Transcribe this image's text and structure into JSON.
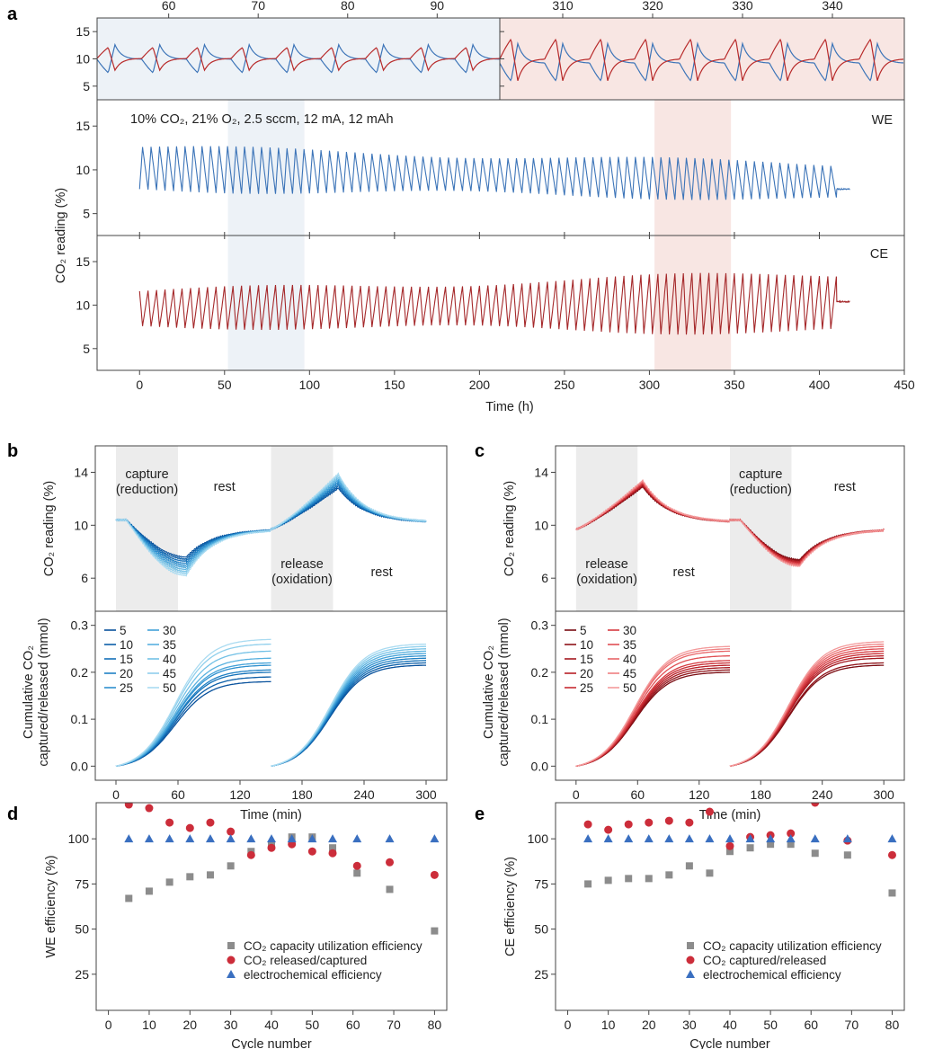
{
  "figure": {
    "panel_letters": [
      "a",
      "b",
      "c",
      "d",
      "e"
    ]
  },
  "chart_data": [
    {
      "id": "a-zoom-left",
      "type": "line",
      "top_axis_ticks": [
        "60",
        "70",
        "80",
        "90"
      ],
      "top_axis_values": [
        60,
        70,
        80,
        90
      ],
      "x_range_h": [
        52,
        97
      ],
      "yticks": [
        "15",
        "10",
        "5"
      ],
      "ytick_values": [
        15,
        10,
        5
      ],
      "ylim": [
        2.5,
        17.5
      ],
      "background": "#edf2f7",
      "series": [
        {
          "name": "WE",
          "color": "#3c74b8",
          "mean": 9.9,
          "amplitude": 2.7
        },
        {
          "name": "CE",
          "color": "#b82a2a",
          "mean": 10.1,
          "amplitude": 2.2
        }
      ]
    },
    {
      "id": "a-zoom-right",
      "type": "line",
      "top_axis_ticks": [
        "310",
        "320",
        "330",
        "340"
      ],
      "top_axis_values": [
        310,
        320,
        330,
        340
      ],
      "x_range_h": [
        303,
        348
      ],
      "ylim": [
        2.5,
        17.5
      ],
      "background": "#f8e6e3",
      "series": [
        {
          "name": "WE",
          "color": "#3c74b8",
          "mean": 9.2,
          "amplitude": 3.6
        },
        {
          "name": "CE",
          "color": "#b82a2a",
          "mean": 10.0,
          "amplitude": 4.0
        }
      ]
    },
    {
      "id": "a-we",
      "type": "line",
      "annotation": "10% CO₂, 21% O₂, 2.5 sccm, 12 mA, 12 mAh",
      "label": "WE",
      "ylabel": "CO₂ reading (%)",
      "yticks": [
        "15",
        "10",
        "5"
      ],
      "ytick_values": [
        15,
        10,
        5
      ],
      "ylim": [
        2.5,
        18
      ],
      "color": "#3c74b8",
      "cycle_period_h": 5,
      "data_end_h": 418,
      "highlight_regions_h": [
        [
          52,
          97
        ],
        [
          303,
          348
        ]
      ],
      "oscillation": {
        "mean_start": 10.2,
        "mean_end": 8.6,
        "amplitude_start": 2.4,
        "amplitude_end": 2.0,
        "final_value": 7.8
      }
    },
    {
      "id": "a-ce",
      "type": "line",
      "label": "CE",
      "yticks": [
        "15",
        "10",
        "5"
      ],
      "ytick_values": [
        15,
        10,
        5
      ],
      "ylim": [
        2.5,
        18
      ],
      "color": "#a5282a",
      "cycle_period_h": 5,
      "data_end_h": 418,
      "oscillation": {
        "mean_start": 9.6,
        "mean_end": 10.3,
        "amplitude_start": 2.0,
        "amplitude_end": 3.4,
        "final_value": 10.4
      },
      "xticks": [
        "0",
        "50",
        "100",
        "150",
        "200",
        "250",
        "300",
        "350",
        "400",
        "450"
      ],
      "xtick_values": [
        0,
        50,
        100,
        150,
        200,
        250,
        300,
        350,
        400,
        450
      ],
      "xlim": [
        -25,
        450
      ],
      "xlabel": "Time (h)"
    },
    {
      "id": "b-top",
      "type": "line",
      "ylabel": "CO₂ reading (%)",
      "yticks": [
        "14",
        "10",
        "6"
      ],
      "ytick_values": [
        14,
        10,
        6
      ],
      "ylim": [
        3.5,
        16
      ],
      "xlim": [
        -20,
        320
      ],
      "regions": [
        {
          "range_min": [
            0,
            60
          ],
          "label1": "capture",
          "label2": "(reduction)"
        },
        {
          "range_min": [
            150,
            210
          ],
          "label1": "release",
          "label2": "(oxidation)"
        }
      ],
      "rest_labels": [
        "rest",
        "rest"
      ],
      "profile": "capture-first",
      "min_range": [
        6.2,
        7.6
      ],
      "max_range": [
        12.8,
        13.9
      ]
    },
    {
      "id": "b-bottom",
      "type": "line",
      "ylabel1": "Cumulative CO₂",
      "ylabel2": "captured/released (mmol)",
      "yticks": [
        "0.3",
        "0.2",
        "0.1",
        "0.0"
      ],
      "ytick_values": [
        0.3,
        0.2,
        0.1,
        0.0
      ],
      "ylim": [
        -0.03,
        0.33
      ],
      "xticks": [
        "0",
        "60",
        "120",
        "180",
        "240",
        "300"
      ],
      "xtick_values": [
        0,
        60,
        120,
        180,
        240,
        300
      ],
      "xlim": [
        -20,
        320
      ],
      "xlabel": "Time (min)",
      "legend": [
        "5",
        "10",
        "15",
        "20",
        "25",
        "30",
        "35",
        "40",
        "45",
        "50"
      ],
      "first_segment_final": [
        0.18,
        0.19,
        0.2,
        0.205,
        0.215,
        0.22,
        0.23,
        0.245,
        0.26,
        0.27
      ],
      "second_segment_final": [
        0.215,
        0.22,
        0.225,
        0.23,
        0.235,
        0.24,
        0.245,
        0.25,
        0.255,
        0.26
      ],
      "colors": [
        "#08519c",
        "#0b5ea8",
        "#1370b8",
        "#1f80c4",
        "#2e90cf",
        "#42a1d8",
        "#58b1df",
        "#73c1e6",
        "#8fcfec",
        "#aadbf1"
      ]
    },
    {
      "id": "c-top",
      "type": "line",
      "ylabel": "CO₂ reading (%)",
      "yticks": [
        "14",
        "10",
        "6"
      ],
      "ytick_values": [
        14,
        10,
        6
      ],
      "ylim": [
        3.5,
        16
      ],
      "xlim": [
        -20,
        320
      ],
      "regions": [
        {
          "range_min": [
            0,
            60
          ],
          "label1": "release",
          "label2": "(oxidation)"
        },
        {
          "range_min": [
            150,
            210
          ],
          "label1": "capture",
          "label2": "(reduction)"
        }
      ],
      "rest_labels": [
        "rest",
        "rest"
      ],
      "profile": "release-first",
      "min_range": [
        6.9,
        7.4
      ],
      "max_range": [
        12.9,
        13.4
      ]
    },
    {
      "id": "c-bottom",
      "type": "line",
      "ylabel1": "Cumulative CO₂",
      "ylabel2": "captured/released (mmol)",
      "yticks": [
        "0.3",
        "0.2",
        "0.1",
        "0.0"
      ],
      "ytick_values": [
        0.3,
        0.2,
        0.1,
        0.0
      ],
      "ylim": [
        -0.03,
        0.33
      ],
      "xticks": [
        "0",
        "60",
        "120",
        "180",
        "240",
        "300"
      ],
      "xtick_values": [
        0,
        60,
        120,
        180,
        240,
        300
      ],
      "xlim": [
        -20,
        320
      ],
      "xlabel": "Time (min)",
      "legend": [
        "5",
        "10",
        "15",
        "20",
        "25",
        "30",
        "35",
        "40",
        "45",
        "50"
      ],
      "first_segment_final": [
        0.2,
        0.205,
        0.21,
        0.215,
        0.22,
        0.225,
        0.235,
        0.245,
        0.25,
        0.255
      ],
      "second_segment_final": [
        0.215,
        0.22,
        0.23,
        0.235,
        0.24,
        0.245,
        0.25,
        0.255,
        0.26,
        0.265
      ],
      "colors": [
        "#7a0c12",
        "#8e1218",
        "#a3181f",
        "#b71f27",
        "#c72a31",
        "#d53b41",
        "#e04e53",
        "#e86568",
        "#ee7e80",
        "#f39a9b"
      ]
    },
    {
      "id": "d",
      "type": "scatter",
      "ylabel": "WE efficiency (%)",
      "xlabel": "Cycle number",
      "xticks": [
        "0",
        "10",
        "20",
        "30",
        "40",
        "50",
        "60",
        "70",
        "80"
      ],
      "xtick_values": [
        0,
        10,
        20,
        30,
        40,
        50,
        60,
        70,
        80
      ],
      "xlim": [
        -3,
        83
      ],
      "yticks": [
        "100",
        "75",
        "50",
        "25"
      ],
      "ytick_values": [
        100,
        75,
        50,
        25
      ],
      "ylim": [
        5,
        120
      ],
      "series": [
        {
          "name": "CO₂ capacity utilization efficiency",
          "marker": "square",
          "color": "#8c8c8c",
          "x": [
            5,
            10,
            15,
            20,
            25,
            30,
            35,
            40,
            45,
            50,
            55,
            61,
            69,
            80
          ],
          "y": [
            67,
            71,
            76,
            79,
            80,
            85,
            93,
            97,
            101,
            101,
            95,
            81,
            72,
            49
          ]
        },
        {
          "name": "CO₂ released/captured",
          "marker": "circle",
          "color": "#cc2d3a",
          "x": [
            5,
            10,
            15,
            20,
            25,
            30,
            35,
            40,
            45,
            50,
            55,
            61,
            69,
            80
          ],
          "y": [
            119,
            117,
            109,
            106,
            109,
            104,
            91,
            95,
            97,
            93,
            92,
            85,
            87,
            80
          ]
        },
        {
          "name": "electrochemical efficiency",
          "marker": "triangle",
          "color": "#3a6fc0",
          "x": [
            5,
            10,
            15,
            20,
            25,
            30,
            35,
            40,
            45,
            50,
            55,
            61,
            69,
            80
          ],
          "y": [
            100,
            100,
            100,
            100,
            100,
            100,
            100,
            100,
            100,
            100,
            100,
            100,
            100,
            100
          ]
        }
      ]
    },
    {
      "id": "e",
      "type": "scatter",
      "ylabel": "CE efficiency (%)",
      "xlabel": "Cycle number",
      "xticks": [
        "0",
        "10",
        "20",
        "30",
        "40",
        "50",
        "60",
        "70",
        "80"
      ],
      "xtick_values": [
        0,
        10,
        20,
        30,
        40,
        50,
        60,
        70,
        80
      ],
      "xlim": [
        -3,
        83
      ],
      "yticks": [
        "100",
        "75",
        "50",
        "25"
      ],
      "ytick_values": [
        100,
        75,
        50,
        25
      ],
      "ylim": [
        5,
        120
      ],
      "series": [
        {
          "name": "CO₂ capacity utilization efficiency",
          "marker": "square",
          "color": "#8c8c8c",
          "x": [
            5,
            10,
            15,
            20,
            25,
            30,
            35,
            40,
            45,
            50,
            55,
            61,
            69,
            80
          ],
          "y": [
            75,
            77,
            78,
            78,
            80,
            85,
            81,
            93,
            95,
            97,
            97,
            92,
            91,
            70
          ]
        },
        {
          "name": "CO₂ captured/released",
          "marker": "circle",
          "color": "#cc2d3a",
          "x": [
            5,
            10,
            15,
            20,
            25,
            30,
            35,
            40,
            45,
            50,
            55,
            61,
            69,
            80
          ],
          "y": [
            108,
            105,
            108,
            109,
            110,
            109,
            115,
            96,
            101,
            102,
            103,
            120,
            99,
            91
          ]
        },
        {
          "name": "electrochemical efficiency",
          "marker": "triangle",
          "color": "#3a6fc0",
          "x": [
            5,
            10,
            15,
            20,
            25,
            30,
            35,
            40,
            45,
            50,
            55,
            61,
            69,
            80
          ],
          "y": [
            100,
            100,
            100,
            100,
            100,
            100,
            100,
            100,
            100,
            100,
            100,
            100,
            100,
            100
          ]
        }
      ]
    }
  ]
}
